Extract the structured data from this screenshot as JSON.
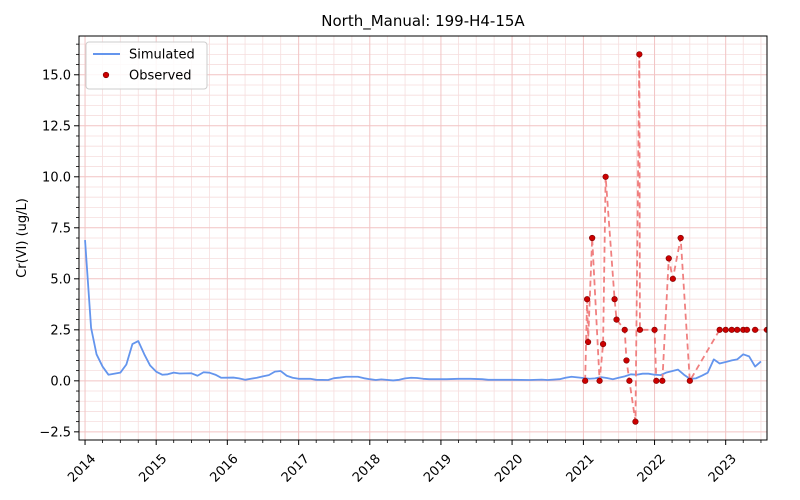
{
  "chart_data": {
    "type": "line",
    "title": "North_Manual: 199-H4-15A",
    "xlabel": "",
    "ylabel": "Cr(VI) (ug/L)",
    "xlim": [
      "2013-12-01",
      "2023-08-01"
    ],
    "ylim": [
      -2.9,
      16.9
    ],
    "x_ticks": [
      "2014",
      "2015",
      "2016",
      "2017",
      "2018",
      "2019",
      "2020",
      "2021",
      "2022",
      "2023"
    ],
    "y_ticks": [
      -2.5,
      0.0,
      2.5,
      5.0,
      7.5,
      10.0,
      12.5,
      15.0
    ],
    "y_tick_labels": [
      "−2.5",
      "0.0",
      "2.5",
      "5.0",
      "7.5",
      "10.0",
      "12.5",
      "15.0"
    ],
    "grid": "major and minor, light red",
    "legend": {
      "position": "top-left",
      "entries": [
        "Simulated",
        "Observed"
      ]
    },
    "colors": {
      "simulated": "#6495ed",
      "observed": "#cc0000",
      "observed_line": "#f08080",
      "major_grid": "#f2c4c4",
      "minor_grid": "#f6dede"
    },
    "series": [
      {
        "name": "Simulated",
        "style": "solid line",
        "points": [
          [
            "2014-01-01",
            6.9
          ],
          [
            "2014-02-01",
            2.6
          ],
          [
            "2014-03-01",
            1.3
          ],
          [
            "2014-04-01",
            0.7
          ],
          [
            "2014-05-01",
            0.3
          ],
          [
            "2014-07-01",
            0.4
          ],
          [
            "2014-08-01",
            0.8
          ],
          [
            "2014-09-01",
            1.8
          ],
          [
            "2014-10-01",
            1.95
          ],
          [
            "2014-11-01",
            1.3
          ],
          [
            "2014-12-01",
            0.75
          ],
          [
            "2015-01-01",
            0.45
          ],
          [
            "2015-02-01",
            0.3
          ],
          [
            "2015-03-01",
            0.32
          ],
          [
            "2015-04-01",
            0.4
          ],
          [
            "2015-05-01",
            0.36
          ],
          [
            "2015-07-01",
            0.37
          ],
          [
            "2015-08-01",
            0.25
          ],
          [
            "2015-09-01",
            0.42
          ],
          [
            "2015-10-01",
            0.4
          ],
          [
            "2015-11-01",
            0.3
          ],
          [
            "2015-12-01",
            0.15
          ],
          [
            "2016-02-01",
            0.16
          ],
          [
            "2016-03-01",
            0.12
          ],
          [
            "2016-04-01",
            0.05
          ],
          [
            "2016-05-01",
            0.1
          ],
          [
            "2016-06-01",
            0.15
          ],
          [
            "2016-07-01",
            0.22
          ],
          [
            "2016-08-01",
            0.28
          ],
          [
            "2016-09-01",
            0.45
          ],
          [
            "2016-10-01",
            0.48
          ],
          [
            "2016-11-01",
            0.25
          ],
          [
            "2016-12-01",
            0.15
          ],
          [
            "2017-01-01",
            0.1
          ],
          [
            "2017-03-01",
            0.1
          ],
          [
            "2017-04-01",
            0.05
          ],
          [
            "2017-06-01",
            0.04
          ],
          [
            "2017-07-01",
            0.13
          ],
          [
            "2017-08-01",
            0.16
          ],
          [
            "2017-09-01",
            0.2
          ],
          [
            "2017-11-01",
            0.2
          ],
          [
            "2017-12-01",
            0.13
          ],
          [
            "2018-01-01",
            0.08
          ],
          [
            "2018-02-01",
            0.04
          ],
          [
            "2018-03-01",
            0.07
          ],
          [
            "2018-05-01",
            0.02
          ],
          [
            "2018-06-01",
            0.05
          ],
          [
            "2018-07-01",
            0.12
          ],
          [
            "2018-08-01",
            0.15
          ],
          [
            "2018-09-01",
            0.14
          ],
          [
            "2018-10-01",
            0.1
          ],
          [
            "2018-11-01",
            0.08
          ],
          [
            "2019-02-01",
            0.08
          ],
          [
            "2019-04-01",
            0.1
          ],
          [
            "2019-06-01",
            0.1
          ],
          [
            "2019-08-01",
            0.08
          ],
          [
            "2019-09-01",
            0.05
          ],
          [
            "2019-11-01",
            0.05
          ],
          [
            "2020-01-01",
            0.05
          ],
          [
            "2020-04-01",
            0.04
          ],
          [
            "2020-06-01",
            0.06
          ],
          [
            "2020-07-01",
            0.04
          ],
          [
            "2020-09-01",
            0.08
          ],
          [
            "2020-10-01",
            0.15
          ],
          [
            "2020-11-01",
            0.2
          ],
          [
            "2021-01-01",
            0.14
          ],
          [
            "2021-02-01",
            0.1
          ],
          [
            "2021-03-01",
            0.12
          ],
          [
            "2021-04-01",
            0.18
          ],
          [
            "2021-05-01",
            0.14
          ],
          [
            "2021-06-01",
            0.08
          ],
          [
            "2021-07-01",
            0.15
          ],
          [
            "2021-08-01",
            0.22
          ],
          [
            "2021-09-01",
            0.32
          ],
          [
            "2021-10-01",
            0.3
          ],
          [
            "2021-11-01",
            0.35
          ],
          [
            "2021-12-01",
            0.35
          ],
          [
            "2022-01-01",
            0.3
          ],
          [
            "2022-02-01",
            0.28
          ],
          [
            "2022-03-01",
            0.4
          ],
          [
            "2022-05-01",
            0.55
          ],
          [
            "2022-06-01",
            0.3
          ],
          [
            "2022-07-01",
            0.1
          ],
          [
            "2022-08-01",
            0.12
          ],
          [
            "2022-09-01",
            0.25
          ],
          [
            "2022-10-01",
            0.4
          ],
          [
            "2022-11-01",
            1.05
          ],
          [
            "2022-12-01",
            0.85
          ],
          [
            "2023-01-01",
            0.92
          ],
          [
            "2023-02-01",
            1.0
          ],
          [
            "2023-03-01",
            1.05
          ],
          [
            "2023-04-01",
            1.3
          ],
          [
            "2023-05-01",
            1.2
          ],
          [
            "2023-06-01",
            0.7
          ],
          [
            "2023-07-01",
            0.95
          ]
        ]
      },
      {
        "name": "Observed",
        "style": "red markers joined by dashed line",
        "points": [
          [
            "2021-01-10",
            0.0
          ],
          [
            "2021-01-20",
            4.0
          ],
          [
            "2021-01-25",
            1.9
          ],
          [
            "2021-02-15",
            7.0
          ],
          [
            "2021-03-25",
            0.0
          ],
          [
            "2021-04-12",
            1.8
          ],
          [
            "2021-04-25",
            10.0
          ],
          [
            "2021-06-10",
            4.0
          ],
          [
            "2021-06-20",
            3.0
          ],
          [
            "2021-08-01",
            2.5
          ],
          [
            "2021-08-10",
            1.0
          ],
          [
            "2021-08-25",
            0.0
          ],
          [
            "2021-09-25",
            -2.0
          ],
          [
            "2021-10-15",
            16.0
          ],
          [
            "2021-10-18",
            2.5
          ],
          [
            "2022-01-01",
            2.5
          ],
          [
            "2022-01-10",
            0.0
          ],
          [
            "2022-02-10",
            0.0
          ],
          [
            "2022-03-15",
            6.0
          ],
          [
            "2022-04-05",
            5.0
          ],
          [
            "2022-05-15",
            7.0
          ],
          [
            "2022-07-01",
            0.0
          ],
          [
            "2022-12-01",
            2.5
          ],
          [
            "2023-01-01",
            2.5
          ],
          [
            "2023-02-01",
            2.5
          ],
          [
            "2023-03-01",
            2.5
          ],
          [
            "2023-04-01",
            2.5
          ],
          [
            "2023-04-20",
            2.5
          ],
          [
            "2023-06-01",
            2.5
          ],
          [
            "2023-08-01",
            2.5
          ]
        ]
      }
    ]
  }
}
